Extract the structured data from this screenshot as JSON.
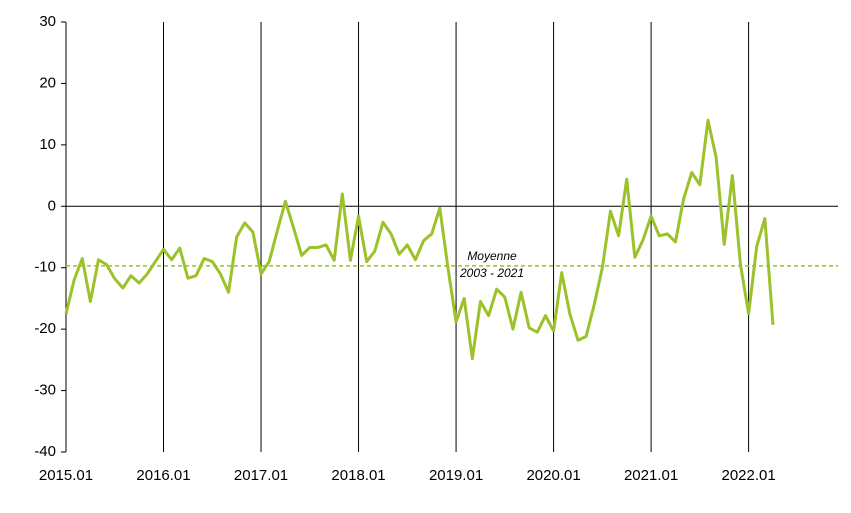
{
  "chart_data": {
    "type": "line",
    "categories": [
      "2015.01",
      null,
      null,
      null,
      null,
      null,
      null,
      null,
      null,
      null,
      null,
      null,
      "2016.01",
      null,
      null,
      null,
      null,
      null,
      null,
      null,
      null,
      null,
      null,
      null,
      "2017.01",
      null,
      null,
      null,
      null,
      null,
      null,
      null,
      null,
      null,
      null,
      null,
      "2018.01",
      null,
      null,
      null,
      null,
      null,
      null,
      null,
      null,
      null,
      null,
      null,
      "2019.01",
      null,
      null,
      null,
      null,
      null,
      null,
      null,
      null,
      null,
      null,
      null,
      "2020.01",
      null,
      null,
      null,
      null,
      null,
      null,
      null,
      null,
      null,
      null,
      null,
      "2021.01",
      null,
      null,
      null,
      null,
      null,
      null,
      null,
      null,
      null,
      null,
      null,
      "2022.01",
      null,
      null,
      null,
      null,
      null,
      null,
      null,
      null,
      null,
      null,
      null
    ],
    "series": [
      {
        "color": "#9bc22a",
        "values": [
          -17.5,
          -12,
          -8.5,
          -15.5,
          -8.7,
          -9.5,
          -11.8,
          -13.3,
          -11.3,
          -12.5,
          -11,
          -9,
          -7,
          -8.7,
          -6.8,
          -11.7,
          -11.3,
          -8.5,
          -9,
          -11,
          -14,
          -5,
          -2.7,
          -4.2,
          -11,
          -9,
          -4,
          0.8,
          -3.5,
          -8,
          -6.7,
          -6.7,
          -6.3,
          -8.8,
          2,
          -8.8,
          -1.6,
          -9,
          -7.3,
          -2.6,
          -4.5,
          -7.8,
          -6.3,
          -8.7,
          -5.6,
          -4.5,
          -0.3,
          -10,
          -18.8,
          -15,
          -24.8,
          -15.5,
          -17.8,
          -13.5,
          -14.8,
          -20,
          -14,
          -19.8,
          -20.5,
          -17.8,
          -20.3,
          -10.8,
          -17.5,
          -21.8,
          -21.2,
          -16,
          -10,
          -0.8,
          -4.8,
          4.4,
          -8.3,
          -5.5,
          -1.6,
          -4.8,
          -4.5,
          -5.8,
          1.2,
          5.5,
          3.5,
          14,
          8,
          -6.2,
          5,
          -9.5,
          -17.5,
          -6.5,
          -2,
          -19.3,
          null,
          null,
          null,
          null,
          null,
          null,
          null,
          null
        ]
      }
    ],
    "reference_line": {
      "value": -9.7,
      "label": [
        "Moyenne",
        "2003 - 2021"
      ],
      "color": "#9bc22a"
    },
    "ylim": [
      -40,
      30
    ],
    "yticks": [
      -40,
      -30,
      -20,
      -10,
      0,
      10,
      20,
      30
    ],
    "grid": true
  }
}
